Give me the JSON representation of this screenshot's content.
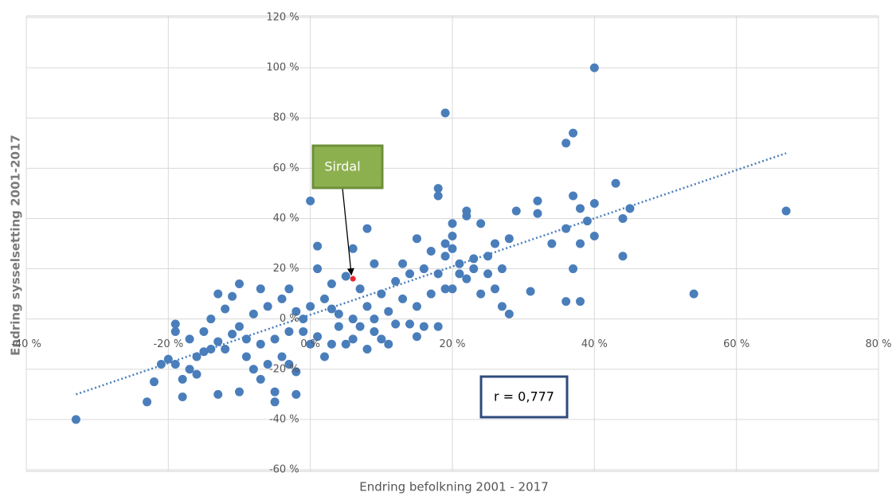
{
  "chart_data": {
    "type": "scatter",
    "xlabel": "Endring befolkning 2001 - 2017",
    "ylabel": "Endring sysselsetting 2001-2017",
    "xlim": [
      -40,
      80
    ],
    "ylim": [
      -60,
      120
    ],
    "xticks": [
      {
        "value": -40,
        "label": "-40 %"
      },
      {
        "value": -20,
        "label": "-20 %"
      },
      {
        "value": 0,
        "label": "0 %"
      },
      {
        "value": 20,
        "label": "20 %"
      },
      {
        "value": 40,
        "label": "40 %"
      },
      {
        "value": 60,
        "label": "60 %"
      },
      {
        "value": 80,
        "label": "80 %"
      }
    ],
    "yticks": [
      {
        "value": -60,
        "label": "-60 %"
      },
      {
        "value": -40,
        "label": "-40 %"
      },
      {
        "value": -20,
        "label": "-20 %"
      },
      {
        "value": 0,
        "label": "0 %"
      },
      {
        "value": 20,
        "label": "20 %"
      },
      {
        "value": 40,
        "label": "40 %"
      },
      {
        "value": 60,
        "label": "60 %"
      },
      {
        "value": 80,
        "label": "80 %"
      },
      {
        "value": 100,
        "label": "100 %"
      },
      {
        "value": 120,
        "label": "120 %"
      }
    ],
    "grid": true,
    "series": [
      {
        "color": "#4a7ebb",
        "x": [
          -33,
          -23,
          -22,
          -18,
          -19,
          -13,
          -13,
          -11,
          -10,
          -5,
          -5,
          -2,
          -2,
          -10,
          -7,
          0,
          1,
          6,
          8,
          15,
          17,
          18,
          18,
          19,
          40,
          36,
          37,
          37,
          38,
          43,
          40,
          40,
          44,
          45,
          44,
          37,
          36,
          38,
          54,
          67,
          39,
          36,
          38,
          34,
          32,
          32,
          29,
          31,
          27,
          28,
          26,
          24,
          22,
          22,
          20,
          20,
          19,
          19,
          21,
          23,
          25,
          27,
          22,
          24,
          20,
          18,
          16,
          14,
          15,
          10,
          11,
          9,
          7,
          5,
          2,
          3,
          -1,
          0,
          -4,
          -6,
          -8,
          -9,
          -12,
          -14,
          -16,
          -17,
          -18,
          -19,
          -20,
          -15,
          -14,
          -12,
          -10,
          -8,
          -6,
          -4,
          -3,
          -2,
          0,
          2,
          4,
          6,
          8,
          10,
          12,
          14,
          13,
          11,
          7,
          5,
          3,
          1,
          -1,
          -3,
          -5,
          -7,
          -9,
          -11,
          -13,
          -15,
          4,
          6,
          9,
          12,
          15,
          17,
          16,
          19,
          21,
          23,
          25,
          26,
          28,
          20,
          18,
          13,
          9,
          -16,
          -21,
          -7,
          -3,
          1,
          3,
          8,
          -19,
          -17
        ],
        "values": [
          -40,
          -33,
          -25,
          -31,
          -2,
          -30,
          10,
          9,
          -29,
          -29,
          -33,
          -30,
          -21,
          14,
          12,
          47,
          29,
          28,
          36,
          32,
          27,
          49,
          52,
          82,
          100,
          70,
          74,
          49,
          44,
          54,
          46,
          33,
          40,
          44,
          25,
          20,
          7,
          7,
          10,
          43,
          39,
          36,
          30,
          30,
          42,
          47,
          43,
          11,
          5,
          2,
          12,
          38,
          43,
          41,
          38,
          33,
          30,
          25,
          22,
          20,
          18,
          20,
          16,
          10,
          12,
          -3,
          -3,
          -2,
          -7,
          -8,
          -10,
          -5,
          -3,
          -10,
          -15,
          -10,
          -5,
          -10,
          -15,
          -18,
          -20,
          -15,
          -12,
          -12,
          -15,
          -20,
          -24,
          -18,
          -16,
          -5,
          0,
          4,
          -3,
          2,
          5,
          8,
          12,
          3,
          5,
          8,
          2,
          0,
          5,
          10,
          15,
          18,
          8,
          3,
          12,
          17,
          14,
          20,
          0,
          -5,
          -8,
          -10,
          -8,
          -6,
          -9,
          -13,
          -3,
          -8,
          0,
          -2,
          5,
          10,
          20,
          12,
          18,
          24,
          25,
          30,
          32,
          28,
          18,
          22,
          22,
          -22,
          -18,
          -24,
          -18,
          -7,
          4,
          -12,
          -5,
          -8
        ]
      },
      {
        "color": "#e8262a",
        "x": [
          6
        ],
        "values": [
          16
        ]
      }
    ],
    "trendline": {
      "color": "#4a7ebb",
      "x": [
        -33,
        67
      ],
      "values": [
        -30,
        66
      ]
    },
    "annotations": [
      {
        "text": "Sirdal",
        "x": 6,
        "y": 16
      },
      {
        "text": "r = 0,777"
      }
    ]
  }
}
